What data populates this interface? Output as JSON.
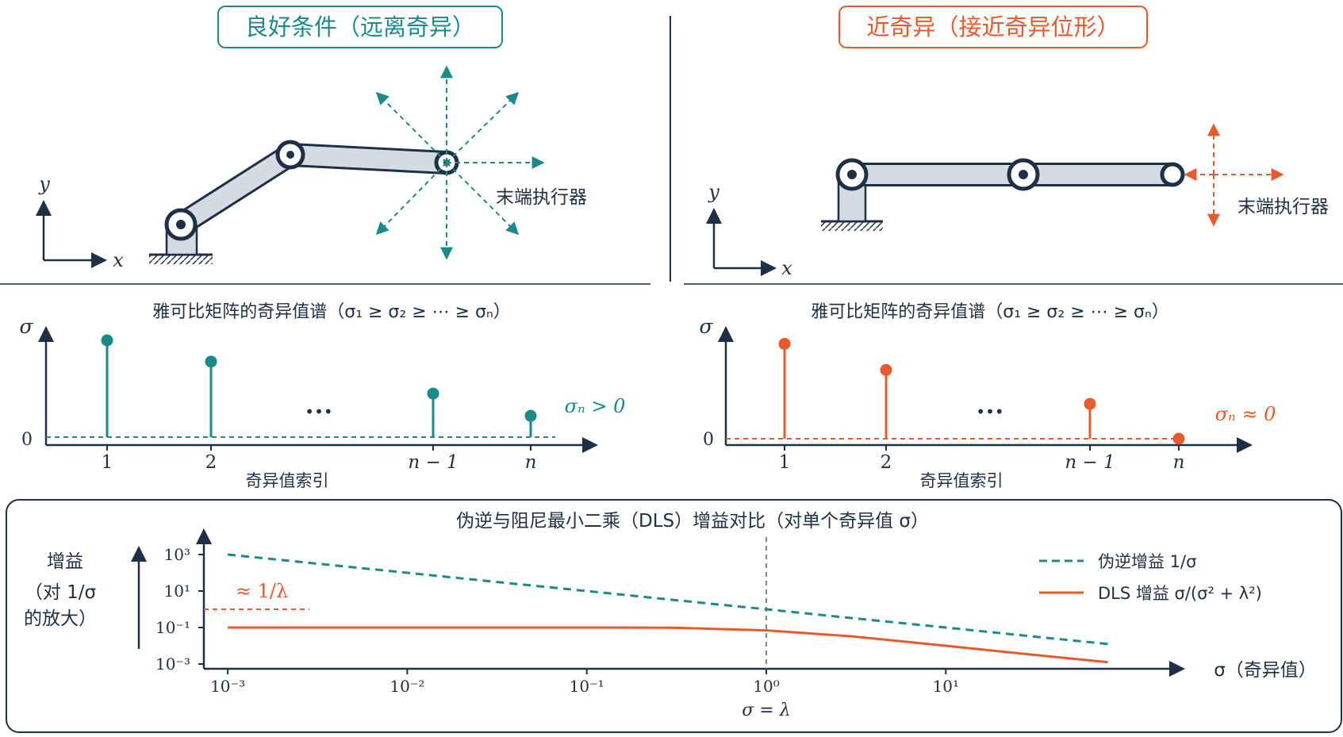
{
  "colors": {
    "teal": "#1a8a8a",
    "orange": "#e85a2c",
    "navy": "#1f2f45",
    "link_fill": "#d4dbe2",
    "grid_gray": "#777777"
  },
  "left_panel": {
    "title": "良好条件（远离奇异）",
    "effector_label": "末端执行器",
    "axis_x": "x",
    "axis_y": "y"
  },
  "right_panel": {
    "title": "近奇异（接近奇异位形）",
    "effector_label": "末端执行器",
    "axis_x": "x",
    "axis_y": "y"
  },
  "spectrum_left": {
    "title": "雅可比矩阵的奇异值谱（σ₁ ≥ σ₂ ≥ ⋯ ≥ σₙ）",
    "y_label": "σ",
    "zero_label": "0",
    "x_title": "奇异值索引",
    "annotation": "σₙ > 0",
    "ellipsis": "•••",
    "ticks": [
      "1",
      "2",
      "n − 1",
      "n"
    ]
  },
  "spectrum_right": {
    "title": "雅可比矩阵的奇异值谱（σ₁ ≥ σ₂ ≥ ⋯ ≥ σₙ）",
    "y_label": "σ",
    "zero_label": "0",
    "x_title": "奇异值索引",
    "annotation": "σₙ ≈ 0",
    "ellipsis": "•••",
    "ticks": [
      "1",
      "2",
      "n − 1",
      "n"
    ]
  },
  "gain_panel": {
    "title": "伪逆与阻尼最小二乘（DLS）增益对比（对单个奇异值 σ）",
    "y_label_lines": [
      "增益",
      "（对 1/σ",
      "的放大）"
    ],
    "x_label": "σ（奇异值）",
    "lambda_label": "σ = λ",
    "approx_label": "≈ 1/λ",
    "legend": [
      "伪逆增益 1/σ",
      "DLS 增益 σ/(σ² + λ²)"
    ]
  },
  "chart_data": [
    {
      "type": "scatter",
      "subtype": "stem",
      "title": "雅可比矩阵的奇异值谱（σ₁ ≥ σ₂ ≥ ⋯ ≥ σₙ）",
      "xlabel": "奇异值索引",
      "ylabel": "σ",
      "categories": [
        "1",
        "2",
        "n − 1",
        "n"
      ],
      "values": [
        1.0,
        0.78,
        0.45,
        0.22
      ],
      "annotation": "σₙ > 0"
    },
    {
      "type": "scatter",
      "subtype": "stem",
      "title": "雅可比矩阵的奇异值谱（σ₁ ≥ σ₂ ≥ ⋯ ≥ σₙ）",
      "xlabel": "奇异值索引",
      "ylabel": "σ",
      "categories": [
        "1",
        "2",
        "n − 1",
        "n"
      ],
      "values": [
        0.98,
        0.71,
        0.36,
        0.0
      ],
      "annotation": "σₙ ≈ 0"
    },
    {
      "type": "line",
      "title": "伪逆与阻尼最小二乘（DLS）增益对比（对单个奇异值 σ）",
      "xlabel": "σ（奇异值）",
      "ylabel": "增益（对 1/σ 的放大）",
      "x_scale": "log",
      "y_scale": "log",
      "lambda": 1,
      "x_ticks": [
        "10⁻³",
        "10⁻²",
        "10⁻¹",
        "10⁰",
        "10¹"
      ],
      "y_ticks": [
        "10³",
        "10¹",
        "10⁻¹",
        "10⁻³"
      ],
      "series": [
        {
          "name": "伪逆增益 1/σ",
          "style": "dashed",
          "x": [
            0.001,
            0.003,
            0.01,
            0.03,
            0.1,
            0.3,
            1,
            3,
            10,
            30,
            80
          ],
          "y": [
            1000,
            333,
            100,
            33,
            10,
            3.3,
            1,
            0.33,
            0.1,
            0.033,
            0.0125
          ]
        },
        {
          "name": "DLS 增益 σ/(σ² + λ²)",
          "style": "solid",
          "x": [
            0.001,
            0.003,
            0.01,
            0.03,
            0.1,
            0.3,
            1,
            3,
            10,
            30,
            80
          ],
          "y": [
            0.1,
            0.1,
            0.1,
            0.1,
            0.1,
            0.098,
            0.07,
            0.033,
            0.01,
            0.0033,
            0.00125
          ]
        }
      ]
    }
  ]
}
